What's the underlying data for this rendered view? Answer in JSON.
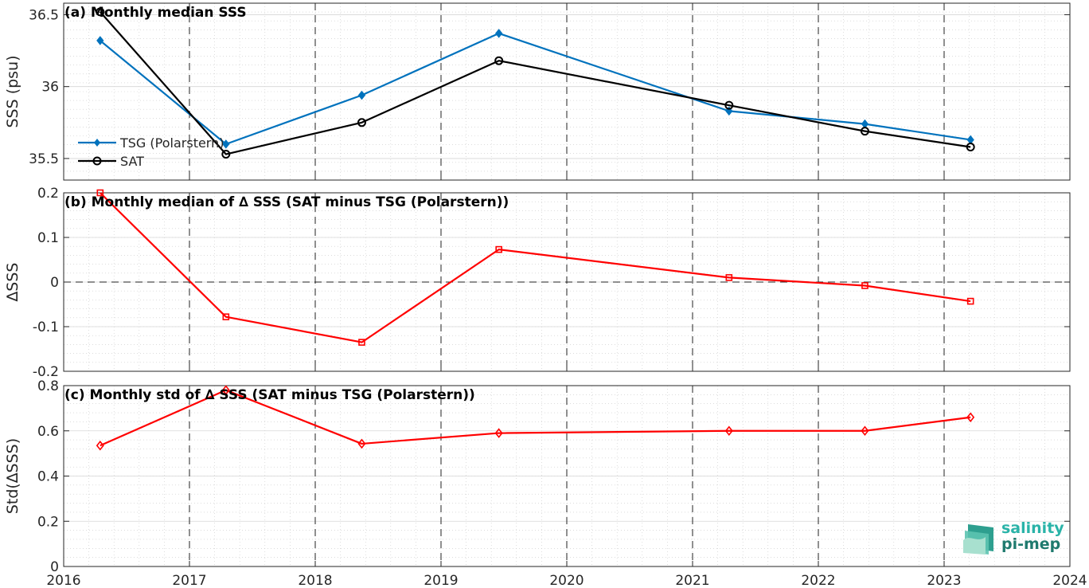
{
  "chart_data": [
    {
      "type": "line",
      "title": "(a) Monthly median SSS",
      "ylabel": "SSS (psu)",
      "xlim": [
        2016,
        2024
      ],
      "ylim": [
        35.35,
        36.58
      ],
      "yticks": [
        35.5,
        36,
        36.5
      ],
      "ytick_labels": [
        "35.5",
        "36",
        "36.5"
      ],
      "grid": true,
      "legend": "middle-left",
      "series": [
        {
          "name": "TSG (Polarstern)",
          "color": "#0072bd",
          "marker": "diamond-filled",
          "x": [
            2016.29,
            2017.29,
            2018.37,
            2019.46,
            2021.29,
            2022.37,
            2023.21
          ],
          "y": [
            36.32,
            35.6,
            35.94,
            36.37,
            35.83,
            35.74,
            35.63
          ]
        },
        {
          "name": "SAT",
          "color": "#000000",
          "marker": "circle",
          "x": [
            2016.29,
            2017.29,
            2018.37,
            2019.46,
            2021.29,
            2022.37,
            2023.21
          ],
          "y": [
            36.52,
            35.53,
            35.75,
            36.18,
            35.87,
            35.69,
            35.58
          ]
        }
      ]
    },
    {
      "type": "line",
      "title": "(b) Monthly median of ∆ SSS (SAT minus TSG (Polarstern))",
      "ylabel": "∆SSS",
      "xlim": [
        2016,
        2024
      ],
      "ylim": [
        -0.2,
        0.2
      ],
      "yticks": [
        -0.2,
        -0.1,
        0,
        0.1,
        0.2
      ],
      "ytick_labels": [
        "-0.2",
        "-0.1",
        "0",
        "0.1",
        "0.2"
      ],
      "grid": true,
      "reference_line_y": 0,
      "series": [
        {
          "color": "#ff0000",
          "marker": "square",
          "x": [
            2016.29,
            2017.29,
            2018.37,
            2019.46,
            2021.29,
            2022.37,
            2023.21
          ],
          "y": [
            0.2,
            -0.078,
            -0.135,
            0.073,
            0.01,
            -0.008,
            -0.043
          ]
        }
      ]
    },
    {
      "type": "line",
      "title": "(c) Monthly std of ∆ SSS (SAT minus TSG (Polarstern))",
      "ylabel": "Std(∆SSS)",
      "xlim": [
        2016,
        2024
      ],
      "ylim": [
        0,
        0.8
      ],
      "yticks": [
        0,
        0.2,
        0.4,
        0.6,
        0.8
      ],
      "ytick_labels": [
        "0",
        "0.2",
        "0.4",
        "0.6",
        "0.8"
      ],
      "xticks": [
        2016,
        2017,
        2018,
        2019,
        2020,
        2021,
        2022,
        2023,
        2024
      ],
      "xtick_labels": [
        "2016",
        "2017",
        "2018",
        "2019",
        "2020",
        "2021",
        "2022",
        "2023",
        "2024"
      ],
      "grid": true,
      "series": [
        {
          "color": "#ff0000",
          "marker": "diamond",
          "x": [
            2016.29,
            2017.29,
            2018.37,
            2019.46,
            2021.29,
            2022.37,
            2023.21
          ],
          "y": [
            0.535,
            0.78,
            0.543,
            0.59,
            0.6,
            0.6,
            0.66
          ]
        }
      ]
    }
  ],
  "logo": {
    "line1": "salinity",
    "line2": "pi-mep"
  }
}
